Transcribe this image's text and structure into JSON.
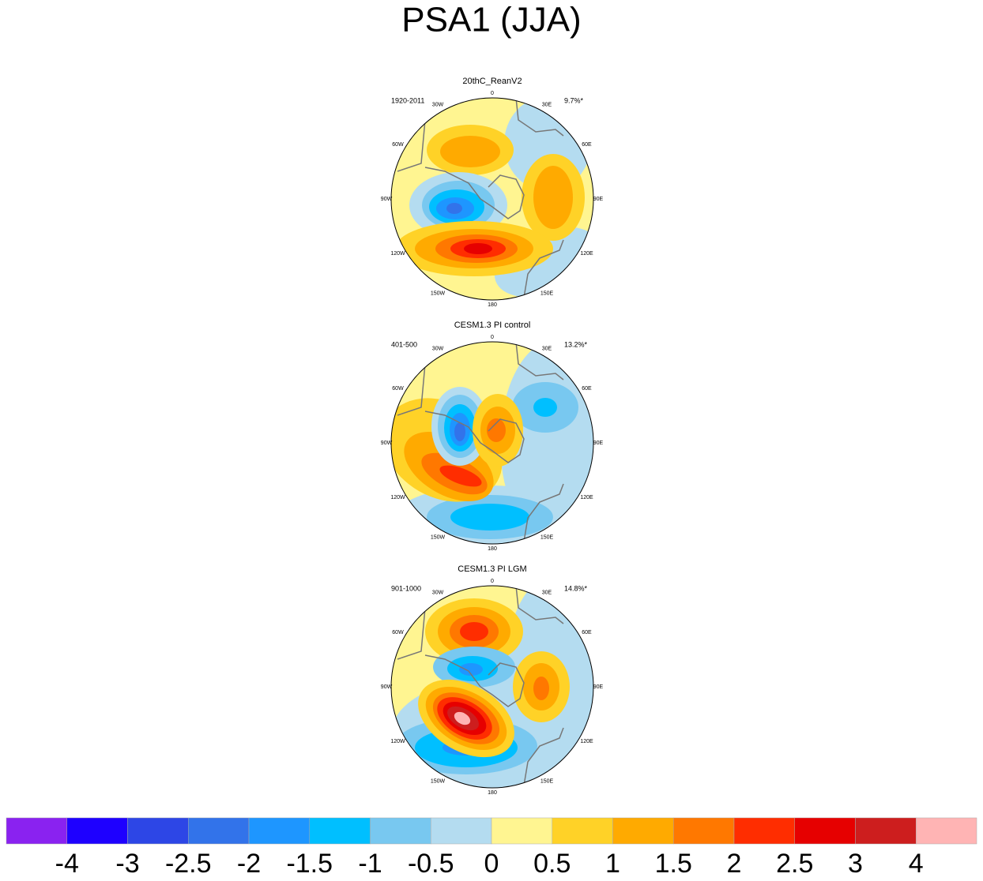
{
  "title": "PSA1 (JJA)",
  "panels": [
    {
      "title": "20thC_ReanV2",
      "period": "1920-2011",
      "variance": "9.7%*"
    },
    {
      "title": "CESM1.3 PI control",
      "period": "401-500",
      "variance": "13.2%*"
    },
    {
      "title": "CESM1.3 PI LGM",
      "period": "901-1000",
      "variance": "14.8%*"
    }
  ],
  "lon_labels": [
    "0",
    "30E",
    "60E",
    "90E",
    "120E",
    "150E",
    "180",
    "150W",
    "120W",
    "90W",
    "60W",
    "30W"
  ],
  "colorbar": {
    "colors": [
      "#8a22f0",
      "#1e00ff",
      "#2d46e6",
      "#3273ea",
      "#1e96ff",
      "#00bfff",
      "#78c8f0",
      "#b4dcf0",
      "#fff591",
      "#ffd227",
      "#ffaa00",
      "#ff7800",
      "#ff2d00",
      "#e60000",
      "#cd1e1e",
      "#ffb4b4"
    ],
    "labels": [
      "-4",
      "-3",
      "-2.5",
      "-2",
      "-1.5",
      "-1",
      "-0.5",
      "0",
      "0.5",
      "1",
      "1.5",
      "2",
      "2.5",
      "3",
      "4"
    ]
  }
}
